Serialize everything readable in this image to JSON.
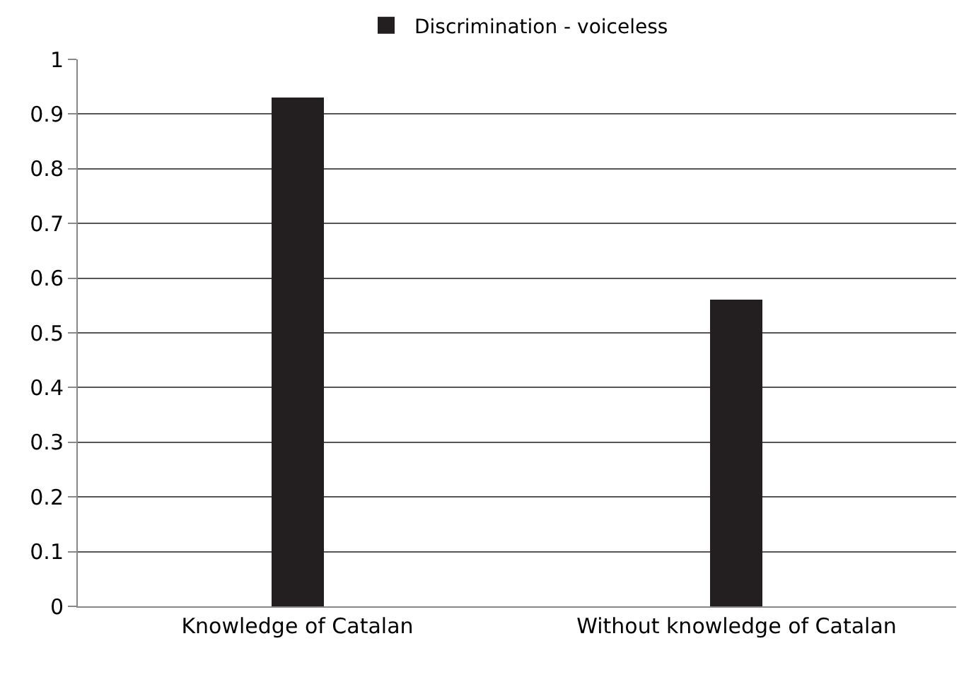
{
  "chart_data": {
    "type": "bar",
    "categories": [
      "Knowledge of Catalan",
      "Without knowledge of Catalan"
    ],
    "series": [
      {
        "name": "Discrimination - voiceless",
        "color": "#231f20",
        "values": [
          0.93,
          0.56
        ]
      }
    ],
    "ylim": [
      0,
      1
    ],
    "yticks": [
      0,
      0.1,
      0.2,
      0.3,
      0.4,
      0.5,
      0.6,
      0.7,
      0.8,
      0.9,
      1
    ],
    "grid": "y",
    "legend": "top"
  }
}
